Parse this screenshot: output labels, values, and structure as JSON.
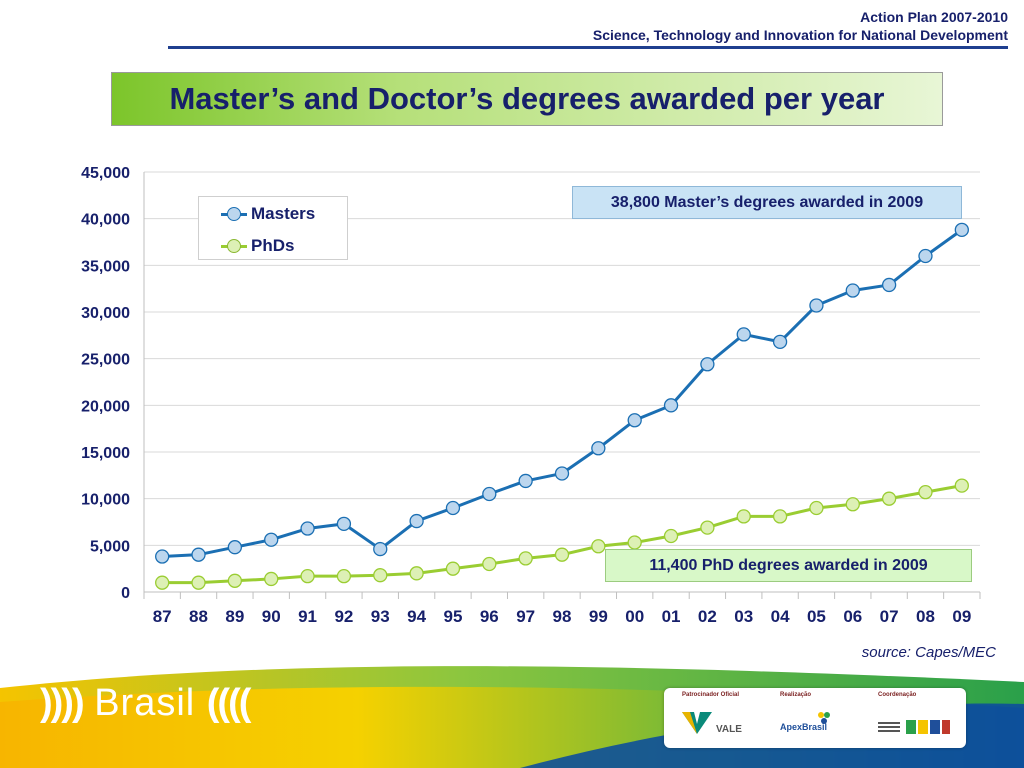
{
  "header": {
    "line1": "Action Plan 2007-2010",
    "line2": "Science, Technology and Innovation for National Development"
  },
  "slide_title": "Master’s and Doctor’s degrees awarded per year",
  "chart_data": {
    "type": "line",
    "categories": [
      "87",
      "88",
      "89",
      "90",
      "91",
      "92",
      "93",
      "94",
      "95",
      "96",
      "97",
      "98",
      "99",
      "00",
      "01",
      "02",
      "03",
      "04",
      "05",
      "06",
      "07",
      "08",
      "09"
    ],
    "series": [
      {
        "name": "Masters",
        "color": "#1b6fb3",
        "marker_fill": "#bcd6ee",
        "values": [
          3800,
          4000,
          4800,
          5600,
          6800,
          7300,
          4600,
          7600,
          9000,
          10500,
          11900,
          12700,
          15400,
          18400,
          20000,
          24400,
          27600,
          26800,
          30700,
          32300,
          32900,
          36000,
          38800
        ]
      },
      {
        "name": "PhDs",
        "color": "#9acd32",
        "marker_fill": "#ddf0b5",
        "values": [
          1000,
          1000,
          1200,
          1400,
          1700,
          1700,
          1800,
          2000,
          2500,
          3000,
          3600,
          4000,
          4900,
          5300,
          6000,
          6900,
          8100,
          8100,
          9000,
          9400,
          10000,
          10700,
          11400
        ]
      }
    ],
    "ylim": [
      0,
      45000
    ],
    "yticks": [
      0,
      5000,
      10000,
      15000,
      20000,
      25000,
      30000,
      35000,
      40000,
      45000
    ],
    "ytick_labels": [
      "0",
      "5,000",
      "10,000",
      "15,000",
      "20,000",
      "25,000",
      "30,000",
      "35,000",
      "40,000",
      "45,000"
    ],
    "grid": true,
    "legend_position": "top-left",
    "annotations": [
      "38,800 Master’s degrees awarded in 2009",
      "11,400 PhD degrees awarded in 2009"
    ]
  },
  "source": "source: Capes/MEC",
  "footer": {
    "brand": "Brasil",
    "sponsor_labels": [
      "Patrocinador Oficial",
      "Realização",
      "Coordenação"
    ],
    "sponsor_logos": [
      "VALE",
      "ApexBrasil"
    ]
  }
}
